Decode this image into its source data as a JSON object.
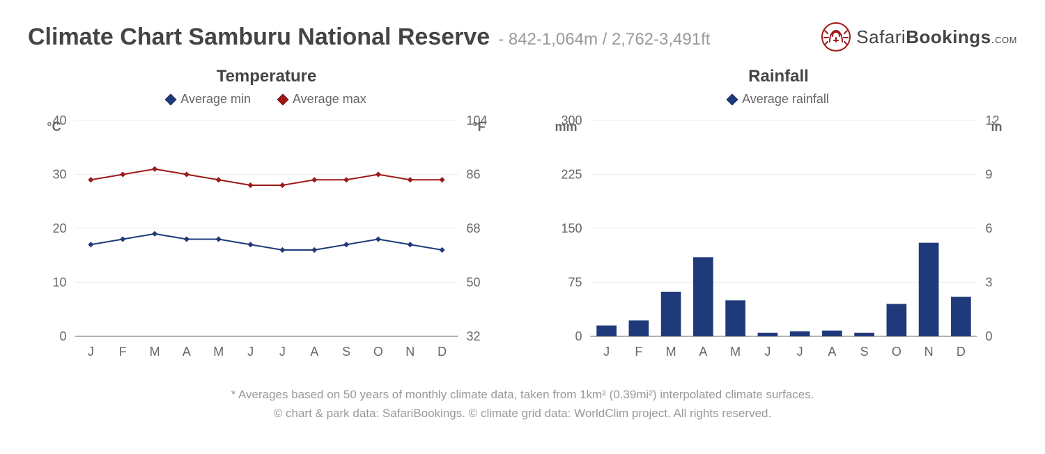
{
  "header": {
    "title": "Climate Chart Samburu National Reserve",
    "subtitle": "- 842-1,064m / 2,762-3,491ft",
    "logo_brand_a": "Safari",
    "logo_brand_b": "Bookings",
    "logo_brand_c": ".com",
    "logo_color": "#a01818"
  },
  "temperature_chart": {
    "type": "line",
    "title": "Temperature",
    "legend_min": "Average min",
    "legend_max": "Average max",
    "left_axis_label": "°C",
    "right_axis_label": "°F",
    "categories": [
      "J",
      "F",
      "M",
      "A",
      "M",
      "J",
      "J",
      "A",
      "S",
      "O",
      "N",
      "D"
    ],
    "y_left": {
      "min": 0,
      "max": 40,
      "step": 10,
      "ticks": [
        0,
        10,
        20,
        30,
        40
      ]
    },
    "y_right": {
      "ticks": [
        32,
        50,
        68,
        86,
        104
      ]
    },
    "min_values": [
      17,
      18,
      19,
      18,
      18,
      17,
      16,
      16,
      17,
      18,
      17,
      16
    ],
    "max_values": [
      29,
      30,
      31,
      30,
      29,
      28,
      28,
      29,
      29,
      30,
      29,
      29
    ],
    "min_color": "#1f3a7a",
    "max_color": "#a01818",
    "line_width": 2,
    "marker_size": 8,
    "grid_color": "#eeeeee",
    "axis_color": "#999999",
    "background_color": "#ffffff",
    "label_fontsize": 18
  },
  "rainfall_chart": {
    "type": "bar",
    "title": "Rainfall",
    "legend": "Average rainfall",
    "left_axis_label": "mm",
    "right_axis_label": "in",
    "categories": [
      "J",
      "F",
      "M",
      "A",
      "M",
      "J",
      "J",
      "A",
      "S",
      "O",
      "N",
      "D"
    ],
    "y_left": {
      "min": 0,
      "max": 300,
      "step": 75,
      "ticks": [
        0,
        75,
        150,
        225,
        300
      ]
    },
    "y_right": {
      "ticks": [
        0,
        3,
        6,
        9,
        12
      ]
    },
    "values": [
      15,
      22,
      62,
      110,
      50,
      5,
      7,
      8,
      5,
      45,
      130,
      55
    ],
    "bar_color": "#1f3a7a",
    "bar_width": 0.62,
    "grid_color": "#eeeeee",
    "axis_color": "#999999",
    "background_color": "#ffffff",
    "label_fontsize": 18
  },
  "footer": {
    "line1": "* Averages based on 50 years of monthly climate data, taken from 1km² (0.39mi²) interpolated climate surfaces.",
    "line2": "© chart & park data: SafariBookings. © climate grid data: WorldClim project. All rights reserved."
  }
}
